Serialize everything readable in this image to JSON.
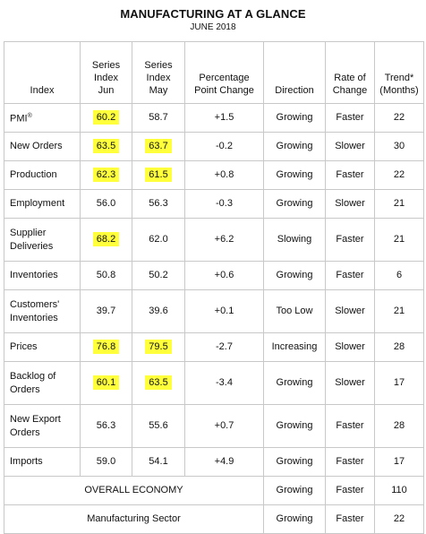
{
  "header": {
    "title": "MANUFACTURING AT A GLANCE",
    "subtitle": "JUNE 2018"
  },
  "columns": {
    "index": "Index",
    "jun": [
      "Series",
      "Index",
      "Jun"
    ],
    "may": [
      "Series",
      "Index",
      "May"
    ],
    "change": [
      "Percentage",
      "Point Change"
    ],
    "direction": "Direction",
    "rate": [
      "Rate of",
      "Change"
    ],
    "trend": [
      "Trend*",
      "(Months)"
    ]
  },
  "rows": [
    {
      "index": "PMI",
      "sup": "®",
      "jun": "60.2",
      "may": "58.7",
      "change": "+1.5",
      "direction": "Growing",
      "rate": "Faster",
      "trend": "22",
      "hl_jun": true,
      "hl_may": false
    },
    {
      "index": "New Orders",
      "jun": "63.5",
      "may": "63.7",
      "change": "-0.2",
      "direction": "Growing",
      "rate": "Slower",
      "trend": "30",
      "hl_jun": true,
      "hl_may": true
    },
    {
      "index": "Production",
      "jun": "62.3",
      "may": "61.5",
      "change": "+0.8",
      "direction": "Growing",
      "rate": "Faster",
      "trend": "22",
      "hl_jun": true,
      "hl_may": true
    },
    {
      "index": "Employment",
      "jun": "56.0",
      "may": "56.3",
      "change": "-0.3",
      "direction": "Growing",
      "rate": "Slower",
      "trend": "21",
      "hl_jun": false,
      "hl_may": false
    },
    {
      "index": [
        "Supplier",
        "Deliveries"
      ],
      "jun": "68.2",
      "may": "62.0",
      "change": "+6.2",
      "direction": "Slowing",
      "rate": "Faster",
      "trend": "21",
      "hl_jun": true,
      "hl_may": false
    },
    {
      "index": "Inventories",
      "jun": "50.8",
      "may": "50.2",
      "change": "+0.6",
      "direction": "Growing",
      "rate": "Faster",
      "trend": "6",
      "hl_jun": false,
      "hl_may": false
    },
    {
      "index": [
        "Customers'",
        "Inventories"
      ],
      "jun": "39.7",
      "may": "39.6",
      "change": "+0.1",
      "direction": "Too Low",
      "rate": "Slower",
      "trend": "21",
      "hl_jun": false,
      "hl_may": false
    },
    {
      "index": "Prices",
      "jun": "76.8",
      "may": "79.5",
      "change": "-2.7",
      "direction": "Increasing",
      "rate": "Slower",
      "trend": "28",
      "hl_jun": true,
      "hl_may": true
    },
    {
      "index": [
        "Backlog of",
        "Orders"
      ],
      "jun": "60.1",
      "may": "63.5",
      "change": "-3.4",
      "direction": "Growing",
      "rate": "Slower",
      "trend": "17",
      "hl_jun": true,
      "hl_may": true
    },
    {
      "index": [
        "New Export",
        "Orders"
      ],
      "jun": "56.3",
      "may": "55.6",
      "change": "+0.7",
      "direction": "Growing",
      "rate": "Faster",
      "trend": "28",
      "hl_jun": false,
      "hl_may": false
    },
    {
      "index": "Imports",
      "jun": "59.0",
      "may": "54.1",
      "change": "+4.9",
      "direction": "Growing",
      "rate": "Faster",
      "trend": "17",
      "hl_jun": false,
      "hl_may": false
    }
  ],
  "summary_rows": [
    {
      "label": "OVERALL ECONOMY",
      "direction": "Growing",
      "rate": "Faster",
      "trend": "110"
    },
    {
      "label": "Manufacturing Sector",
      "direction": "Growing",
      "rate": "Faster",
      "trend": "22"
    }
  ],
  "colors": {
    "highlight": "#ffff3c",
    "border": "#c8c8c8"
  }
}
